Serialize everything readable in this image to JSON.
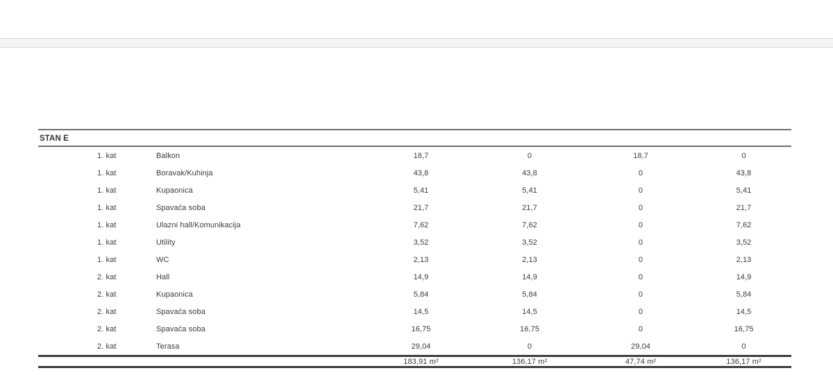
{
  "document": {
    "section_title": "STAN E",
    "rows": [
      {
        "floor": "1. kat",
        "room": "Balkon",
        "values": [
          "18,7",
          "0",
          "18,7",
          "0"
        ]
      },
      {
        "floor": "1. kat",
        "room": "Boravak/Kuhinja",
        "values": [
          "43,8",
          "43,8",
          "0",
          "43,8"
        ]
      },
      {
        "floor": "1. kat",
        "room": "Kupaonica",
        "values": [
          "5,41",
          "5,41",
          "0",
          "5,41"
        ]
      },
      {
        "floor": "1. kat",
        "room": "Spavaća soba",
        "values": [
          "21,7",
          "21,7",
          "0",
          "21,7"
        ]
      },
      {
        "floor": "1. kat",
        "room": "Ulazni hall/Komunikacija",
        "values": [
          "7,62",
          "7,62",
          "0",
          "7,62"
        ]
      },
      {
        "floor": "1. kat",
        "room": "Utility",
        "values": [
          "3,52",
          "3,52",
          "0",
          "3,52"
        ]
      },
      {
        "floor": "1. kat",
        "room": "WC",
        "values": [
          "2,13",
          "2,13",
          "0",
          "2,13"
        ]
      },
      {
        "floor": "2. kat",
        "room": "Hall",
        "values": [
          "14,9",
          "14,9",
          "0",
          "14,9"
        ]
      },
      {
        "floor": "2. kat",
        "room": "Kupaonica",
        "values": [
          "5,84",
          "5,84",
          "0",
          "5,84"
        ]
      },
      {
        "floor": "2. kat",
        "room": "Spavaća soba",
        "values": [
          "14,5",
          "14,5",
          "0",
          "14,5"
        ]
      },
      {
        "floor": "2. kat",
        "room": "Spavaća soba",
        "values": [
          "16,75",
          "16,75",
          "0",
          "16,75"
        ]
      },
      {
        "floor": "2. kat",
        "room": "Terasa",
        "values": [
          "29,04",
          "0",
          "29,04",
          "0"
        ]
      }
    ],
    "totals": [
      "183,91 m²",
      "136,17 m²",
      "47,74 m²",
      "136,17 m²"
    ]
  }
}
